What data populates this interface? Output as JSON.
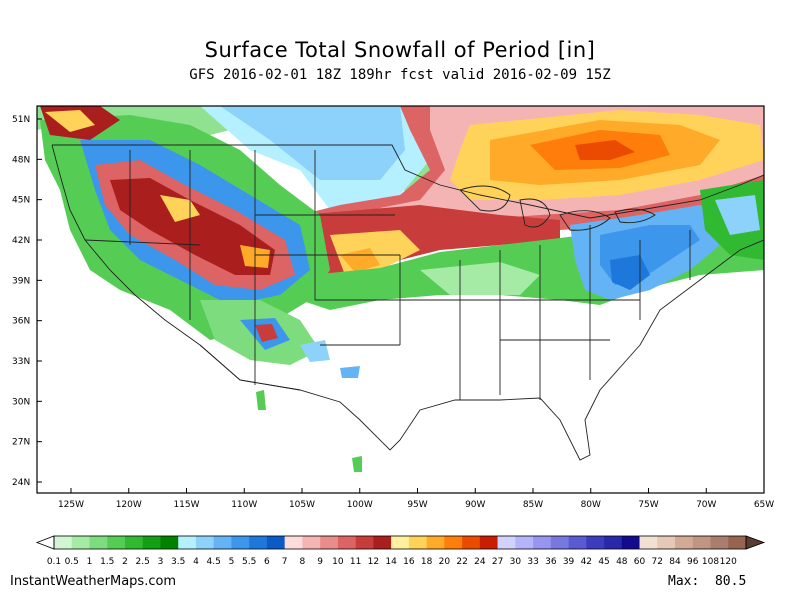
{
  "header": {
    "title": "Surface Total Snowfall of Period [in]",
    "subtitle": "GFS 2016-02-01 18Z 189hr fcst valid 2016-02-09 15Z"
  },
  "axes": {
    "lat_labels": [
      "51N",
      "48N",
      "45N",
      "42N",
      "39N",
      "36N",
      "33N",
      "30N",
      "27N",
      "24N"
    ],
    "lat_values": [
      51,
      48,
      45,
      42,
      39,
      36,
      33,
      30,
      27,
      24
    ],
    "lon_labels": [
      "125W",
      "120W",
      "115W",
      "110W",
      "105W",
      "100W",
      "95W",
      "90W",
      "85W",
      "80W",
      "75W",
      "70W",
      "65W"
    ],
    "lon_values": [
      -125,
      -120,
      -115,
      -110,
      -105,
      -100,
      -95,
      -90,
      -85,
      -80,
      -75,
      -70,
      -65
    ]
  },
  "legend": {
    "labels": [
      "0.1",
      "0.5",
      "1",
      "1.5",
      "2",
      "2.5",
      "3",
      "3.5",
      "4",
      "4.5",
      "5",
      "5.5",
      "6",
      "7",
      "8",
      "9",
      "10",
      "11",
      "12",
      "14",
      "16",
      "18",
      "20",
      "22",
      "24",
      "27",
      "30",
      "33",
      "36",
      "39",
      "42",
      "45",
      "48",
      "60",
      "72",
      "84",
      "96",
      "108",
      "120"
    ],
    "colors": [
      "#d2f5d2",
      "#a5eba5",
      "#7ddc7d",
      "#55cd55",
      "#32b932",
      "#14a014",
      "#008200",
      "#b4f0ff",
      "#8cd2fa",
      "#64b4f5",
      "#3c96eb",
      "#1e78dc",
      "#0a5ac8",
      "#ffdcdc",
      "#f5b4b4",
      "#eb8c8c",
      "#dc6464",
      "#c83c3c",
      "#aa1e1e",
      "#fff0a0",
      "#ffd25a",
      "#ffaa28",
      "#ff7d0a",
      "#eb4b00",
      "#c81e00",
      "#d2d2ff",
      "#b4b4fa",
      "#9696f0",
      "#7878e1",
      "#5a5ad2",
      "#3c3cbe",
      "#2828aa",
      "#140a8c",
      "#f0e1d2",
      "#e6c8b9",
      "#d2aa96",
      "#be9682",
      "#aa7d6e",
      "#966450"
    ]
  },
  "footer": {
    "site": "InstantWeatherMaps.com",
    "max_label": "Max:",
    "max_value": "80.5"
  }
}
